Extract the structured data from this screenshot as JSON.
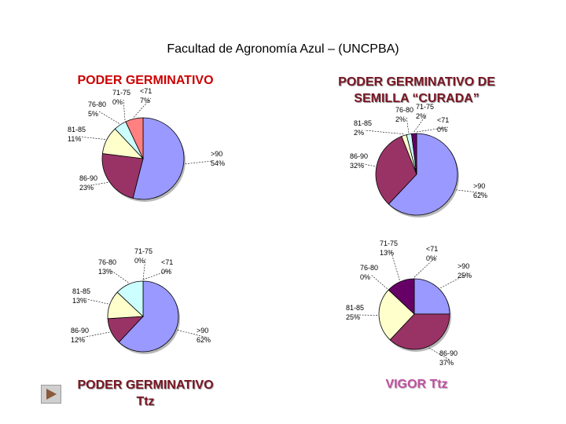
{
  "title": "Facultad de Agronomía Azul – (UNCPBA)",
  "colors": {
    "gt90": "#9999ff",
    "86-90": "#993366",
    "81-85": "#ffffcc",
    "76-80": "#ccffff",
    "71-75": "#660066",
    "lt71": "#ff8080"
  },
  "chart_data": [
    {
      "type": "pie",
      "title": "PODER GERMINATIVO",
      "slices": [
        {
          "label": ">90",
          "value": 54,
          "text": "54%"
        },
        {
          "label": "86-90",
          "value": 23,
          "text": "23%"
        },
        {
          "label": "81-85",
          "value": 11,
          "text": "11%"
        },
        {
          "label": "76-80",
          "value": 5,
          "text": "5%"
        },
        {
          "label": "71-75",
          "value": 0,
          "text": "0%"
        },
        {
          "label": "<71",
          "value": 7,
          "text": "7%"
        }
      ]
    },
    {
      "type": "pie",
      "title_lines": [
        "PODER GERMINATIVO DE",
        "SEMILLA “CURADA”"
      ],
      "slices": [
        {
          "label": ">90",
          "value": 62,
          "text": "62%"
        },
        {
          "label": "86-90",
          "value": 32,
          "text": "32%"
        },
        {
          "label": "81-85",
          "value": 2,
          "text": "2%"
        },
        {
          "label": "76-80",
          "value": 2,
          "text": "2%"
        },
        {
          "label": "71-75",
          "value": 2,
          "text": "2%"
        },
        {
          "label": "<71",
          "value": 0,
          "text": "0%"
        }
      ]
    },
    {
      "type": "pie",
      "title_lines": [
        "PODER GERMINATIVO",
        "Ttz"
      ],
      "slices": [
        {
          "label": ">90",
          "value": 62,
          "text": "62%"
        },
        {
          "label": "86-90",
          "value": 12,
          "text": "12%"
        },
        {
          "label": "81-85",
          "value": 13,
          "text": "13%"
        },
        {
          "label": "76-80",
          "value": 13,
          "text": "13%"
        },
        {
          "label": "71-75",
          "value": 0,
          "text": "0%"
        },
        {
          "label": "<71",
          "value": 0,
          "text": "0%"
        }
      ]
    },
    {
      "type": "pie",
      "title": "VIGOR Ttz",
      "slices": [
        {
          "label": ">90",
          "value": 25,
          "text": "25%"
        },
        {
          "label": "86-90",
          "value": 37,
          "text": "37%"
        },
        {
          "label": "81-85",
          "value": 25,
          "text": "25%"
        },
        {
          "label": "76-80",
          "value": 0,
          "text": "0%"
        },
        {
          "label": "71-75",
          "value": 13,
          "text": "13%"
        },
        {
          "label": "<71",
          "value": 0,
          "text": "0%"
        }
      ]
    }
  ]
}
